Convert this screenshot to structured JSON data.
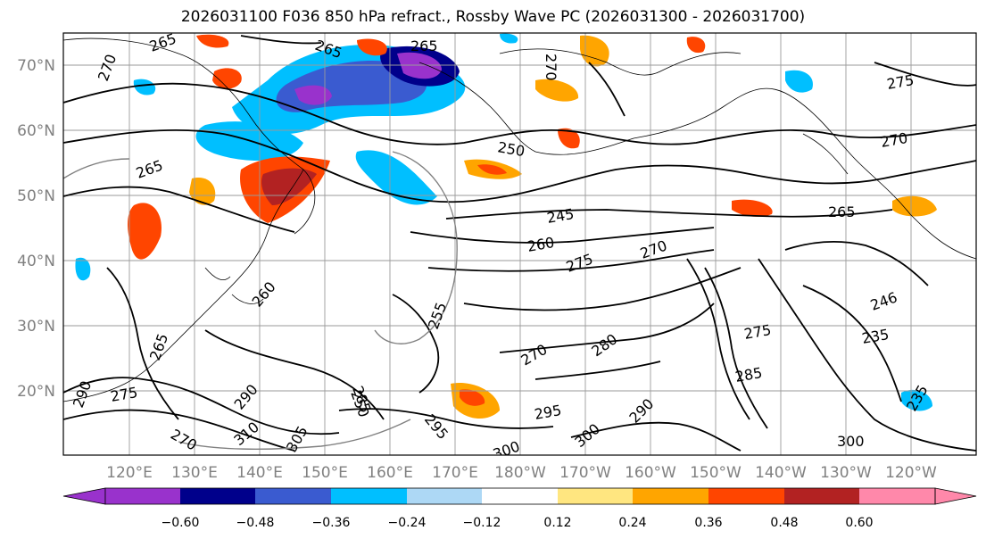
{
  "title": "2026031100 F036 850 hPa refract., Rossby Wave PC (2026031300 - 2026031700)",
  "map": {
    "lat_labels": [
      "70°N",
      "60°N",
      "50°N",
      "40°N",
      "30°N",
      "20°N"
    ],
    "lon_labels": [
      "120°E",
      "130°E",
      "140°E",
      "150°E",
      "160°E",
      "170°E",
      "180°W",
      "170°W",
      "160°W",
      "150°W",
      "140°W",
      "130°W",
      "120°W"
    ],
    "contour_labels": [
      "265",
      "265",
      "265",
      "270",
      "270",
      "265",
      "250",
      "245",
      "260",
      "275",
      "270",
      "265",
      "270",
      "275",
      "280",
      "270",
      "265",
      "290",
      "260",
      "255",
      "250",
      "285",
      "295",
      "290",
      "300",
      "305",
      "310",
      "295",
      "275",
      "235",
      "246",
      "235",
      "270",
      "300",
      "285",
      "275",
      "290",
      "300"
    ]
  },
  "colorbar": {
    "tick_labels": [
      "−0.60",
      "−0.48",
      "−0.36",
      "−0.24",
      "−0.12",
      "0.12",
      "0.24",
      "0.36",
      "0.48",
      "0.60"
    ],
    "colors": [
      "#9932cc",
      "#00008b",
      "#3a5bd0",
      "#00bfff",
      "#add8f5",
      "#ffffff",
      "#ffe680",
      "#ffa500",
      "#ff4500",
      "#b22222",
      "#ff88aa"
    ]
  }
}
